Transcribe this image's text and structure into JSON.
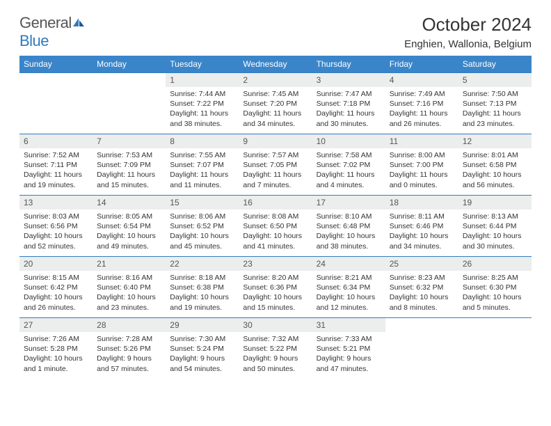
{
  "brand": {
    "name1": "General",
    "name2": "Blue"
  },
  "title": "October 2024",
  "location": "Enghien, Wallonia, Belgium",
  "colors": {
    "header_bg": "#3a85c9",
    "border": "#2f7bbf",
    "daynum_bg": "#eceded",
    "text": "#333333"
  },
  "weekdays": [
    "Sunday",
    "Monday",
    "Tuesday",
    "Wednesday",
    "Thursday",
    "Friday",
    "Saturday"
  ],
  "weeks": [
    [
      null,
      null,
      {
        "n": "1",
        "sr": "Sunrise: 7:44 AM",
        "ss": "Sunset: 7:22 PM",
        "dl": "Daylight: 11 hours and 38 minutes."
      },
      {
        "n": "2",
        "sr": "Sunrise: 7:45 AM",
        "ss": "Sunset: 7:20 PM",
        "dl": "Daylight: 11 hours and 34 minutes."
      },
      {
        "n": "3",
        "sr": "Sunrise: 7:47 AM",
        "ss": "Sunset: 7:18 PM",
        "dl": "Daylight: 11 hours and 30 minutes."
      },
      {
        "n": "4",
        "sr": "Sunrise: 7:49 AM",
        "ss": "Sunset: 7:16 PM",
        "dl": "Daylight: 11 hours and 26 minutes."
      },
      {
        "n": "5",
        "sr": "Sunrise: 7:50 AM",
        "ss": "Sunset: 7:13 PM",
        "dl": "Daylight: 11 hours and 23 minutes."
      }
    ],
    [
      {
        "n": "6",
        "sr": "Sunrise: 7:52 AM",
        "ss": "Sunset: 7:11 PM",
        "dl": "Daylight: 11 hours and 19 minutes."
      },
      {
        "n": "7",
        "sr": "Sunrise: 7:53 AM",
        "ss": "Sunset: 7:09 PM",
        "dl": "Daylight: 11 hours and 15 minutes."
      },
      {
        "n": "8",
        "sr": "Sunrise: 7:55 AM",
        "ss": "Sunset: 7:07 PM",
        "dl": "Daylight: 11 hours and 11 minutes."
      },
      {
        "n": "9",
        "sr": "Sunrise: 7:57 AM",
        "ss": "Sunset: 7:05 PM",
        "dl": "Daylight: 11 hours and 7 minutes."
      },
      {
        "n": "10",
        "sr": "Sunrise: 7:58 AM",
        "ss": "Sunset: 7:02 PM",
        "dl": "Daylight: 11 hours and 4 minutes."
      },
      {
        "n": "11",
        "sr": "Sunrise: 8:00 AM",
        "ss": "Sunset: 7:00 PM",
        "dl": "Daylight: 11 hours and 0 minutes."
      },
      {
        "n": "12",
        "sr": "Sunrise: 8:01 AM",
        "ss": "Sunset: 6:58 PM",
        "dl": "Daylight: 10 hours and 56 minutes."
      }
    ],
    [
      {
        "n": "13",
        "sr": "Sunrise: 8:03 AM",
        "ss": "Sunset: 6:56 PM",
        "dl": "Daylight: 10 hours and 52 minutes."
      },
      {
        "n": "14",
        "sr": "Sunrise: 8:05 AM",
        "ss": "Sunset: 6:54 PM",
        "dl": "Daylight: 10 hours and 49 minutes."
      },
      {
        "n": "15",
        "sr": "Sunrise: 8:06 AM",
        "ss": "Sunset: 6:52 PM",
        "dl": "Daylight: 10 hours and 45 minutes."
      },
      {
        "n": "16",
        "sr": "Sunrise: 8:08 AM",
        "ss": "Sunset: 6:50 PM",
        "dl": "Daylight: 10 hours and 41 minutes."
      },
      {
        "n": "17",
        "sr": "Sunrise: 8:10 AM",
        "ss": "Sunset: 6:48 PM",
        "dl": "Daylight: 10 hours and 38 minutes."
      },
      {
        "n": "18",
        "sr": "Sunrise: 8:11 AM",
        "ss": "Sunset: 6:46 PM",
        "dl": "Daylight: 10 hours and 34 minutes."
      },
      {
        "n": "19",
        "sr": "Sunrise: 8:13 AM",
        "ss": "Sunset: 6:44 PM",
        "dl": "Daylight: 10 hours and 30 minutes."
      }
    ],
    [
      {
        "n": "20",
        "sr": "Sunrise: 8:15 AM",
        "ss": "Sunset: 6:42 PM",
        "dl": "Daylight: 10 hours and 26 minutes."
      },
      {
        "n": "21",
        "sr": "Sunrise: 8:16 AM",
        "ss": "Sunset: 6:40 PM",
        "dl": "Daylight: 10 hours and 23 minutes."
      },
      {
        "n": "22",
        "sr": "Sunrise: 8:18 AM",
        "ss": "Sunset: 6:38 PM",
        "dl": "Daylight: 10 hours and 19 minutes."
      },
      {
        "n": "23",
        "sr": "Sunrise: 8:20 AM",
        "ss": "Sunset: 6:36 PM",
        "dl": "Daylight: 10 hours and 15 minutes."
      },
      {
        "n": "24",
        "sr": "Sunrise: 8:21 AM",
        "ss": "Sunset: 6:34 PM",
        "dl": "Daylight: 10 hours and 12 minutes."
      },
      {
        "n": "25",
        "sr": "Sunrise: 8:23 AM",
        "ss": "Sunset: 6:32 PM",
        "dl": "Daylight: 10 hours and 8 minutes."
      },
      {
        "n": "26",
        "sr": "Sunrise: 8:25 AM",
        "ss": "Sunset: 6:30 PM",
        "dl": "Daylight: 10 hours and 5 minutes."
      }
    ],
    [
      {
        "n": "27",
        "sr": "Sunrise: 7:26 AM",
        "ss": "Sunset: 5:28 PM",
        "dl": "Daylight: 10 hours and 1 minute."
      },
      {
        "n": "28",
        "sr": "Sunrise: 7:28 AM",
        "ss": "Sunset: 5:26 PM",
        "dl": "Daylight: 9 hours and 57 minutes."
      },
      {
        "n": "29",
        "sr": "Sunrise: 7:30 AM",
        "ss": "Sunset: 5:24 PM",
        "dl": "Daylight: 9 hours and 54 minutes."
      },
      {
        "n": "30",
        "sr": "Sunrise: 7:32 AM",
        "ss": "Sunset: 5:22 PM",
        "dl": "Daylight: 9 hours and 50 minutes."
      },
      {
        "n": "31",
        "sr": "Sunrise: 7:33 AM",
        "ss": "Sunset: 5:21 PM",
        "dl": "Daylight: 9 hours and 47 minutes."
      },
      null,
      null
    ]
  ]
}
